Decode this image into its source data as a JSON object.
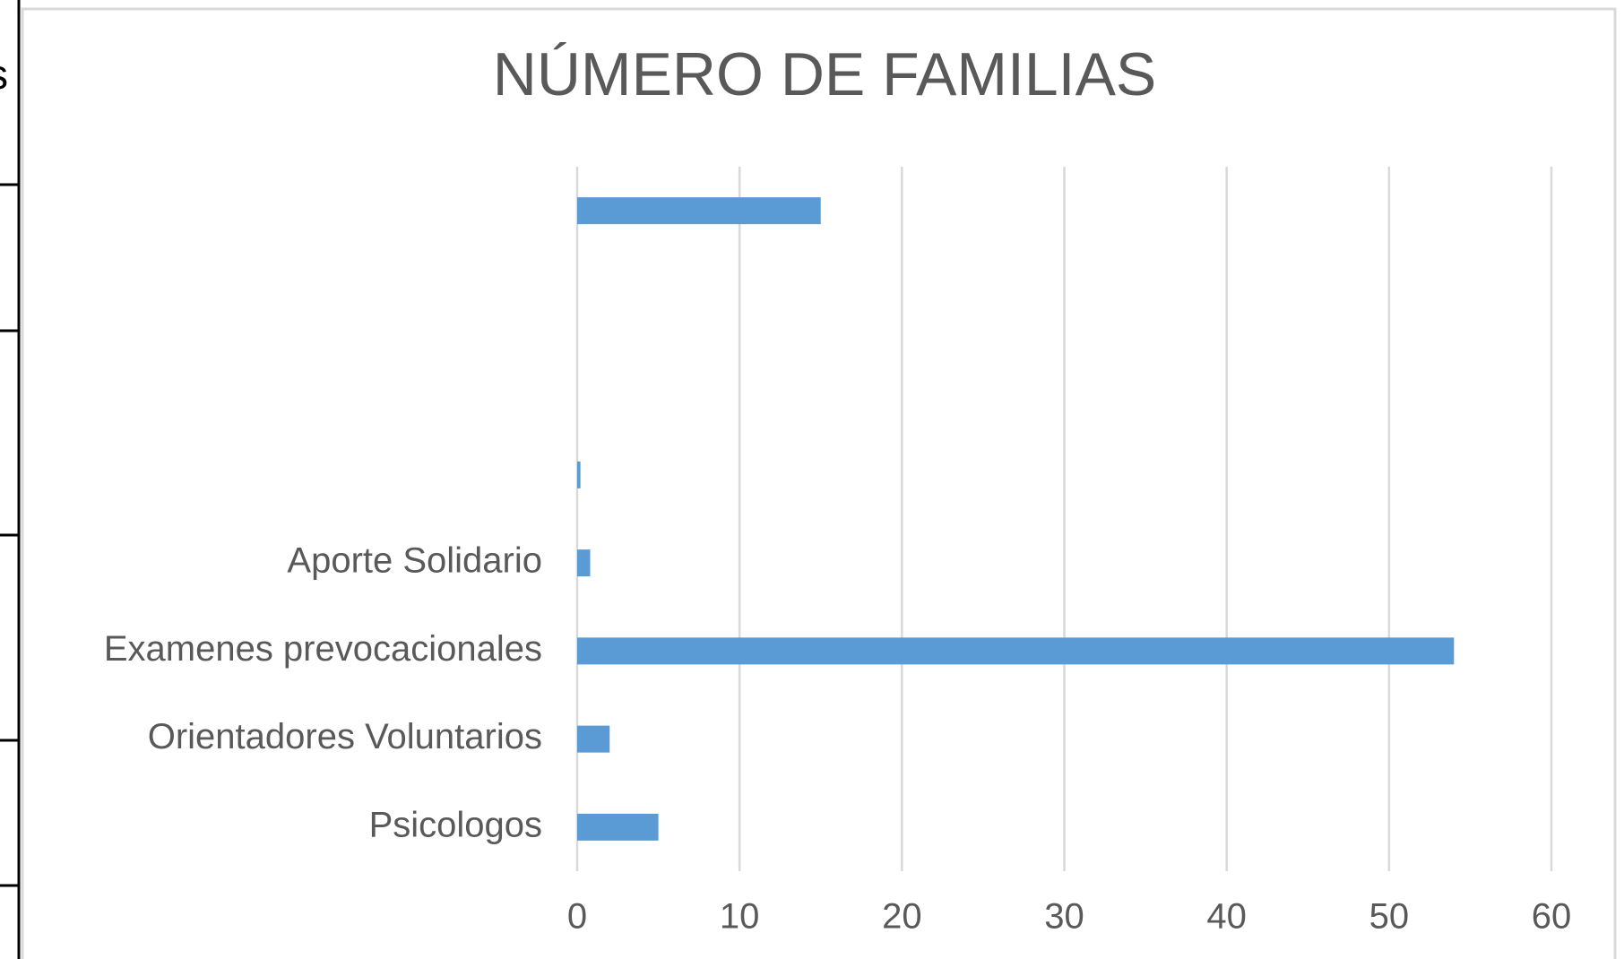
{
  "fragment_text": "s",
  "chart_data": {
    "type": "bar",
    "orientation": "horizontal",
    "title": "NÚMERO DE FAMILIAS",
    "categories": [
      null,
      null,
      null,
      null,
      "Aporte Solidario",
      "Examenes prevocacionales",
      "Orientadores Voluntarios",
      "Psicologos"
    ],
    "values": [
      15,
      null,
      null,
      0.2,
      0.8,
      54,
      2,
      5
    ],
    "color": "#5b9bd5",
    "xlim": [
      0,
      60
    ],
    "xticks": [
      0,
      10,
      20,
      30,
      40,
      50,
      60
    ],
    "grid": true
  }
}
